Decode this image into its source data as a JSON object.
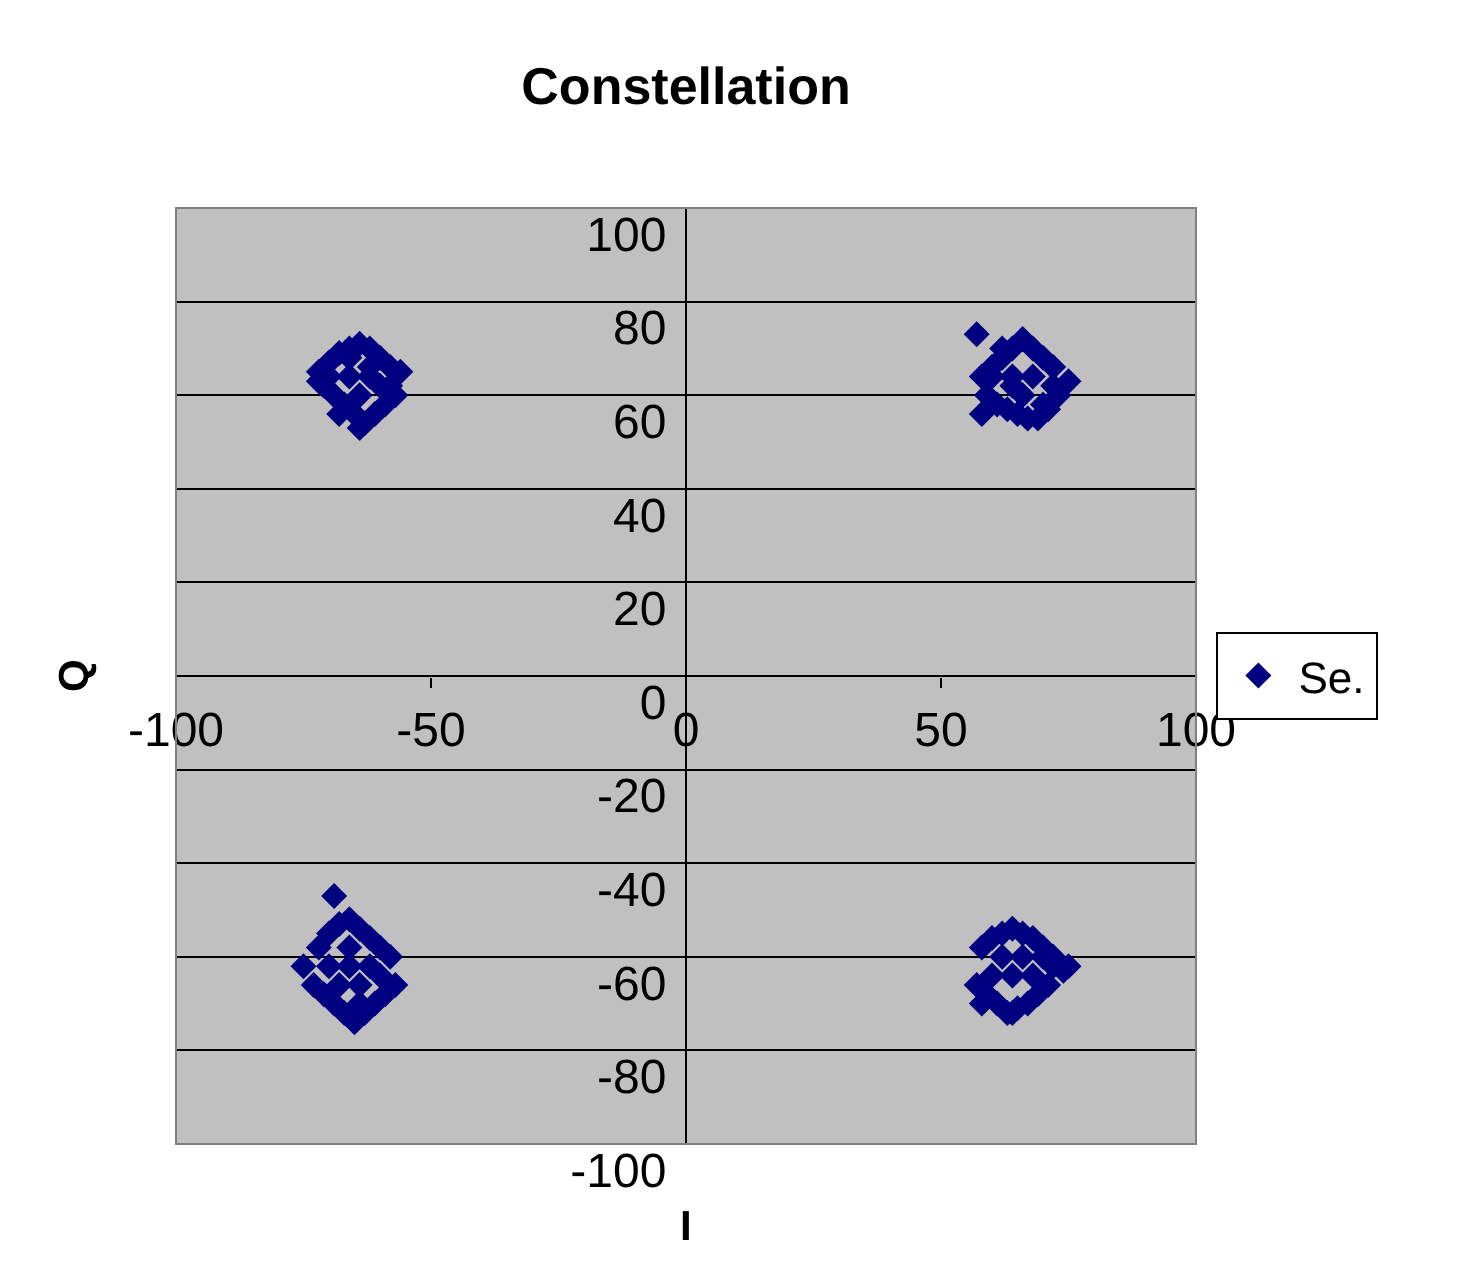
{
  "chart_data": {
    "type": "scatter",
    "title": "Constellation",
    "xlabel": "I",
    "ylabel": "Q",
    "xlim": [
      -100,
      100
    ],
    "xticks": [
      -100,
      -50,
      0,
      50,
      100
    ],
    "ylim": [
      -100,
      100
    ],
    "yticks": [
      -100,
      -80,
      -60,
      -40,
      -20,
      0,
      20,
      40,
      60,
      80,
      100
    ],
    "grid": "y",
    "legend": "right",
    "marker": "diamond",
    "series": [
      {
        "name": "Se.",
        "color": "#000080",
        "x": [
          -72,
          -70,
          -68,
          -66,
          -64,
          -62,
          -60,
          -58,
          -56,
          -71,
          -69,
          -67,
          -65,
          -63,
          -61,
          -59,
          -57,
          -70,
          -66,
          -62,
          -60,
          -64,
          -66,
          -68,
          -64,
          -62,
          -58,
          -72,
          58,
          60,
          62,
          64,
          66,
          68,
          70,
          72,
          57,
          59,
          61,
          63,
          65,
          67,
          69,
          71,
          73,
          75,
          60,
          64,
          68,
          72,
          62,
          66,
          70,
          58,
          64,
          -75,
          -72,
          -70,
          -68,
          -66,
          -64,
          -62,
          -60,
          -58,
          -73,
          -71,
          -69,
          -67,
          -65,
          -63,
          -61,
          -59,
          -57,
          -70,
          -66,
          -62,
          -68,
          -64,
          -60,
          -66,
          -64,
          -69,
          58,
          60,
          62,
          64,
          66,
          68,
          70,
          72,
          74,
          57,
          59,
          61,
          63,
          65,
          67,
          69,
          71,
          75,
          60,
          64,
          68,
          72,
          62,
          66,
          70,
          58,
          64
        ],
        "values": [
          65,
          67,
          69,
          70,
          71,
          70,
          68,
          66,
          65,
          62,
          60,
          58,
          56,
          54,
          56,
          58,
          60,
          64,
          64,
          64,
          62,
          60,
          68,
          56,
          53,
          66,
          62,
          63,
          64,
          66,
          68,
          70,
          72,
          70,
          68,
          66,
          73,
          60,
          58,
          57,
          56,
          55,
          55,
          57,
          60,
          63,
          64,
          64,
          64,
          62,
          70,
          60,
          58,
          56,
          62,
          -62,
          -58,
          -55,
          -53,
          -52,
          -54,
          -56,
          -58,
          -60,
          -66,
          -68,
          -70,
          -72,
          -74,
          -72,
          -70,
          -68,
          -66,
          -62,
          -62,
          -62,
          -66,
          -66,
          -64,
          -58,
          -70,
          -47,
          -58,
          -56,
          -55,
          -54,
          -55,
          -56,
          -58,
          -60,
          -63,
          -66,
          -68,
          -70,
          -72,
          -71,
          -70,
          -68,
          -66,
          -62,
          -64,
          -64,
          -64,
          -62,
          -60,
          -60,
          -60,
          -70,
          -72
        ]
      }
    ]
  }
}
